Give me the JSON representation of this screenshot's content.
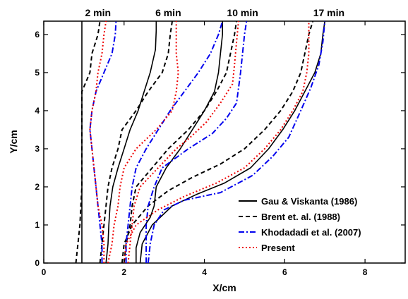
{
  "chart_data": {
    "type": "line",
    "xlabel": "X/cm",
    "ylabel": "Y/cm",
    "xlim": [
      0,
      9
    ],
    "ylim": [
      0,
      6.35
    ],
    "xticks": [
      0,
      2,
      4,
      6,
      8
    ],
    "yticks": [
      0,
      1,
      2,
      3,
      4,
      5,
      6
    ],
    "grid": false,
    "legend_position": "bottom-right",
    "annotations": [
      {
        "text": "2 min",
        "x": 1.35
      },
      {
        "text": "6 min",
        "x": 3.1
      },
      {
        "text": "10 min",
        "x": 4.95
      },
      {
        "text": "17 min",
        "x": 7.1
      }
    ],
    "series": [
      {
        "name": "Gau & Viskanta (1986)",
        "color": "#000000",
        "style": "solid",
        "curves": [
          [
            [
              0.95,
              0
            ],
            [
              0.95,
              0.5
            ],
            [
              0.95,
              1
            ],
            [
              0.95,
              2
            ],
            [
              0.95,
              3
            ],
            [
              0.95,
              4
            ],
            [
              0.95,
              5
            ],
            [
              0.95,
              6
            ],
            [
              0.95,
              6.35
            ]
          ],
          [
            [
              1.55,
              0
            ],
            [
              1.6,
              0.5
            ],
            [
              1.62,
              1
            ],
            [
              1.65,
              1.5
            ],
            [
              1.72,
              2
            ],
            [
              1.85,
              2.5
            ],
            [
              2.0,
              3
            ],
            [
              2.15,
              3.5
            ],
            [
              2.35,
              4
            ],
            [
              2.5,
              4.5
            ],
            [
              2.65,
              5
            ],
            [
              2.78,
              5.6
            ],
            [
              2.8,
              6.1
            ],
            [
              2.8,
              6.35
            ]
          ],
          [
            [
              2.3,
              0
            ],
            [
              2.3,
              0.4
            ],
            [
              2.4,
              0.8
            ],
            [
              2.65,
              1.2
            ],
            [
              2.75,
              1.5
            ],
            [
              2.8,
              2
            ],
            [
              3.05,
              2.5
            ],
            [
              3.4,
              3
            ],
            [
              3.7,
              3.5
            ],
            [
              4.0,
              4
            ],
            [
              4.25,
              4.5
            ],
            [
              4.35,
              5
            ],
            [
              4.4,
              5.5
            ],
            [
              4.45,
              6
            ],
            [
              4.45,
              6.35
            ]
          ],
          [
            [
              2.4,
              0
            ],
            [
              2.45,
              0.5
            ],
            [
              2.7,
              1
            ],
            [
              3.2,
              1.5
            ],
            [
              3.8,
              1.8
            ],
            [
              4.5,
              2.1
            ],
            [
              5.15,
              2.5
            ],
            [
              5.6,
              3
            ],
            [
              5.95,
              3.5
            ],
            [
              6.25,
              4
            ],
            [
              6.5,
              4.5
            ],
            [
              6.75,
              5
            ],
            [
              6.9,
              5.5
            ],
            [
              6.95,
              6
            ],
            [
              7.0,
              6.35
            ]
          ]
        ]
      },
      {
        "name": "Brent et. al. (1988)",
        "color": "#000000",
        "style": "dashed",
        "curves": [
          [
            [
              0.8,
              0
            ],
            [
              0.85,
              0.5
            ],
            [
              0.9,
              1
            ],
            [
              0.95,
              2
            ],
            [
              0.95,
              3
            ],
            [
              0.95,
              4
            ],
            [
              0.95,
              4.5
            ],
            [
              1.15,
              5
            ],
            [
              1.2,
              5.5
            ],
            [
              1.35,
              6
            ],
            [
              1.4,
              6.35
            ]
          ],
          [
            [
              1.4,
              0
            ],
            [
              1.45,
              0.5
            ],
            [
              1.5,
              1
            ],
            [
              1.55,
              1.5
            ],
            [
              1.6,
              2
            ],
            [
              1.7,
              2.5
            ],
            [
              1.85,
              3
            ],
            [
              1.95,
              3.5
            ],
            [
              2.3,
              4
            ],
            [
              2.6,
              4.5
            ],
            [
              2.95,
              5
            ],
            [
              3.1,
              5.5
            ],
            [
              3.15,
              6
            ],
            [
              3.2,
              6.35
            ]
          ],
          [
            [
              2.0,
              0
            ],
            [
              2.05,
              0.5
            ],
            [
              2.15,
              1
            ],
            [
              2.2,
              1.5
            ],
            [
              2.3,
              2
            ],
            [
              2.7,
              2.5
            ],
            [
              3.1,
              3
            ],
            [
              3.6,
              3.5
            ],
            [
              4.0,
              4
            ],
            [
              4.3,
              4.5
            ],
            [
              4.55,
              5
            ],
            [
              4.65,
              5.5
            ],
            [
              4.75,
              6
            ],
            [
              4.8,
              6.35
            ]
          ],
          [
            [
              1.95,
              0
            ],
            [
              2.0,
              0.5
            ],
            [
              2.2,
              1
            ],
            [
              2.6,
              1.5
            ],
            [
              3.1,
              1.9
            ],
            [
              3.7,
              2.25
            ],
            [
              4.4,
              2.6
            ],
            [
              5.0,
              3
            ],
            [
              5.5,
              3.5
            ],
            [
              5.9,
              4
            ],
            [
              6.2,
              4.5
            ],
            [
              6.4,
              5
            ],
            [
              6.5,
              5.5
            ],
            [
              6.6,
              6
            ],
            [
              6.7,
              6.35
            ]
          ]
        ]
      },
      {
        "name": "Khodadadi et al. (2007)",
        "color": "#0000ee",
        "style": "dashdot",
        "curves": [
          [
            [
              1.45,
              0
            ],
            [
              1.45,
              0.5
            ],
            [
              1.4,
              1
            ],
            [
              1.35,
              1.5
            ],
            [
              1.3,
              2
            ],
            [
              1.25,
              2.5
            ],
            [
              1.2,
              3
            ],
            [
              1.15,
              3.5
            ],
            [
              1.2,
              4
            ],
            [
              1.3,
              4.5
            ],
            [
              1.5,
              5
            ],
            [
              1.7,
              5.5
            ],
            [
              1.78,
              6
            ],
            [
              1.8,
              6.35
            ]
          ],
          [
            [
              2.05,
              0
            ],
            [
              2.05,
              0.5
            ],
            [
              2.1,
              1
            ],
            [
              2.15,
              1.5
            ],
            [
              2.2,
              2
            ],
            [
              2.3,
              2.5
            ],
            [
              2.55,
              3
            ],
            [
              2.85,
              3.5
            ],
            [
              3.15,
              4
            ],
            [
              3.5,
              4.5
            ],
            [
              3.85,
              5
            ],
            [
              4.15,
              5.5
            ],
            [
              4.35,
              6
            ],
            [
              4.45,
              6.35
            ]
          ],
          [
            [
              2.55,
              0
            ],
            [
              2.55,
              0.5
            ],
            [
              2.55,
              1
            ],
            [
              2.6,
              1.5
            ],
            [
              2.75,
              2
            ],
            [
              2.95,
              2.5
            ],
            [
              3.6,
              3
            ],
            [
              4.2,
              3.4
            ],
            [
              4.55,
              3.8
            ],
            [
              4.8,
              4.2
            ],
            [
              4.9,
              5
            ],
            [
              4.95,
              5.5
            ],
            [
              5.0,
              6
            ],
            [
              5.05,
              6.35
            ]
          ],
          [
            [
              2.6,
              0
            ],
            [
              2.65,
              0.5
            ],
            [
              2.75,
              1
            ],
            [
              3.0,
              1.4
            ],
            [
              3.5,
              1.65
            ],
            [
              4.4,
              1.85
            ],
            [
              5.2,
              2.3
            ],
            [
              5.7,
              2.8
            ],
            [
              6.1,
              3.3
            ],
            [
              6.4,
              4
            ],
            [
              6.65,
              4.6
            ],
            [
              6.85,
              5.2
            ],
            [
              6.95,
              5.8
            ],
            [
              7.0,
              6.35
            ]
          ]
        ]
      },
      {
        "name": "Present",
        "color": "#ee0000",
        "style": "dotted",
        "curves": [
          [
            [
              1.5,
              0
            ],
            [
              1.5,
              0.5
            ],
            [
              1.45,
              1
            ],
            [
              1.35,
              1.5
            ],
            [
              1.3,
              2
            ],
            [
              1.25,
              2.5
            ],
            [
              1.2,
              3
            ],
            [
              1.15,
              3.5
            ],
            [
              1.2,
              4
            ],
            [
              1.3,
              4.5
            ],
            [
              1.35,
              5
            ],
            [
              1.45,
              5.5
            ],
            [
              1.5,
              6
            ],
            [
              1.55,
              6.35
            ]
          ],
          [
            [
              1.6,
              0
            ],
            [
              1.7,
              0.5
            ],
            [
              1.75,
              1
            ],
            [
              1.85,
              1.5
            ],
            [
              1.9,
              2
            ],
            [
              2.0,
              2.5
            ],
            [
              2.3,
              3
            ],
            [
              2.8,
              3.5
            ],
            [
              3.2,
              4
            ],
            [
              3.3,
              4.5
            ],
            [
              3.35,
              5
            ],
            [
              3.3,
              5.5
            ],
            [
              3.3,
              6
            ],
            [
              3.3,
              6.35
            ]
          ],
          [
            [
              2.1,
              0
            ],
            [
              2.15,
              0.5
            ],
            [
              2.2,
              1
            ],
            [
              2.25,
              1.5
            ],
            [
              2.4,
              2
            ],
            [
              2.85,
              2.5
            ],
            [
              3.3,
              3
            ],
            [
              3.65,
              3.3
            ],
            [
              4.05,
              3.7
            ],
            [
              4.4,
              4.2
            ],
            [
              4.7,
              4.7
            ],
            [
              4.75,
              5.2
            ],
            [
              4.8,
              5.8
            ],
            [
              4.85,
              6.35
            ]
          ],
          [
            [
              2.0,
              0
            ],
            [
              2.05,
              0.5
            ],
            [
              2.3,
              1
            ],
            [
              2.85,
              1.4
            ],
            [
              3.5,
              1.75
            ],
            [
              4.3,
              2.1
            ],
            [
              5.0,
              2.5
            ],
            [
              5.5,
              3
            ],
            [
              5.9,
              3.5
            ],
            [
              6.2,
              4
            ],
            [
              6.45,
              4.5
            ],
            [
              6.55,
              5
            ],
            [
              6.6,
              5.5
            ],
            [
              6.6,
              6
            ],
            [
              6.6,
              6.35
            ]
          ]
        ]
      }
    ]
  }
}
